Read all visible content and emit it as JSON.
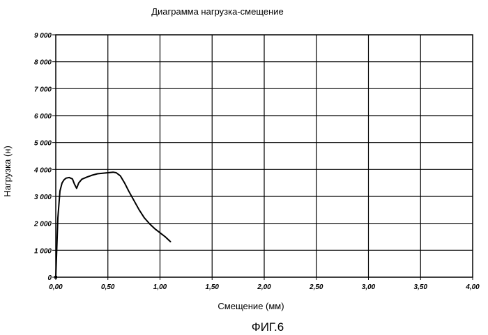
{
  "chart_data": {
    "type": "line",
    "title": "Диаграмма нагрузка-смещение",
    "xlabel": "Смещение (мм)",
    "ylabel": "Нагрузка (н)",
    "xlim": [
      0,
      4
    ],
    "ylim": [
      0,
      9000
    ],
    "x_ticks": [
      0,
      0.5,
      1.0,
      1.5,
      2.0,
      2.5,
      3.0,
      3.5,
      4.0
    ],
    "x_tick_labels": [
      "0,00",
      "0,50",
      "1,00",
      "1,50",
      "2,00",
      "2,50",
      "3,00",
      "3,50",
      "4,00"
    ],
    "y_ticks": [
      0,
      1000,
      2000,
      3000,
      4000,
      5000,
      6000,
      7000,
      8000,
      9000
    ],
    "y_tick_labels": [
      "0",
      "1 000",
      "2 000",
      "3 000",
      "4 000",
      "5 000",
      "6 000",
      "7 000",
      "8 000",
      "9 000"
    ],
    "grid": true,
    "line_color": "#000000",
    "series": [
      {
        "x": [
          0.0,
          0.02,
          0.04,
          0.06,
          0.08,
          0.1,
          0.13,
          0.16,
          0.18,
          0.2,
          0.22,
          0.25,
          0.3,
          0.35,
          0.4,
          0.45,
          0.5,
          0.55,
          0.58,
          0.62,
          0.66,
          0.7,
          0.75,
          0.8,
          0.85,
          0.9,
          0.95,
          1.0,
          1.05,
          1.1
        ],
        "y": [
          0,
          2200,
          3200,
          3500,
          3620,
          3680,
          3700,
          3650,
          3450,
          3300,
          3500,
          3640,
          3720,
          3790,
          3840,
          3860,
          3880,
          3900,
          3880,
          3760,
          3500,
          3200,
          2850,
          2500,
          2200,
          1980,
          1800,
          1650,
          1500,
          1320
        ]
      }
    ]
  },
  "figure_label": "ФИГ.6"
}
